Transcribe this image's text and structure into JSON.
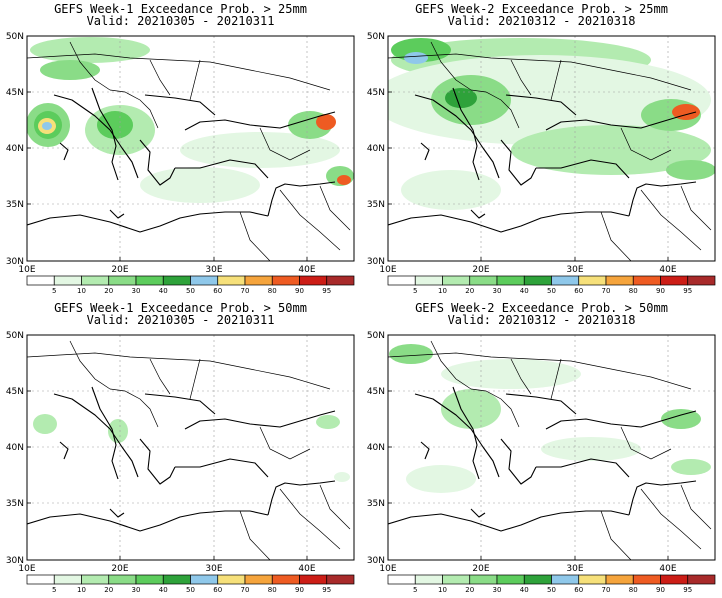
{
  "panels": [
    {
      "title": "GEFS Week-1 Exceedance Prob. > 25mm",
      "valid": "Valid: 20210305 - 20210311"
    },
    {
      "title": "GEFS Week-2 Exceedance Prob. > 25mm",
      "valid": "Valid: 20210312 - 20210318"
    },
    {
      "title": "GEFS Week-1 Exceedance Prob. > 50mm",
      "valid": "Valid: 20210305 - 20210311"
    },
    {
      "title": "GEFS Week-2 Exceedance Prob. > 50mm",
      "valid": "Valid: 20210312 - 20210318"
    }
  ],
  "axes": {
    "lat_labels": [
      "50N",
      "45N",
      "40N",
      "35N",
      "30N"
    ],
    "lon_labels": [
      "10E",
      "20E",
      "30E",
      "40E"
    ]
  },
  "colorbar": {
    "ticks": [
      "5",
      "10",
      "20",
      "30",
      "40",
      "50",
      "60",
      "70",
      "80",
      "90",
      "95"
    ],
    "colors": [
      "#ffffff",
      "#e3f7e3",
      "#b3ebb0",
      "#8adc87",
      "#5ccc5c",
      "#2ea23a",
      "#8fc8ea",
      "#f6e07a",
      "#f5a43c",
      "#ee5b22",
      "#cc1d16",
      "#a82a2a"
    ]
  }
}
